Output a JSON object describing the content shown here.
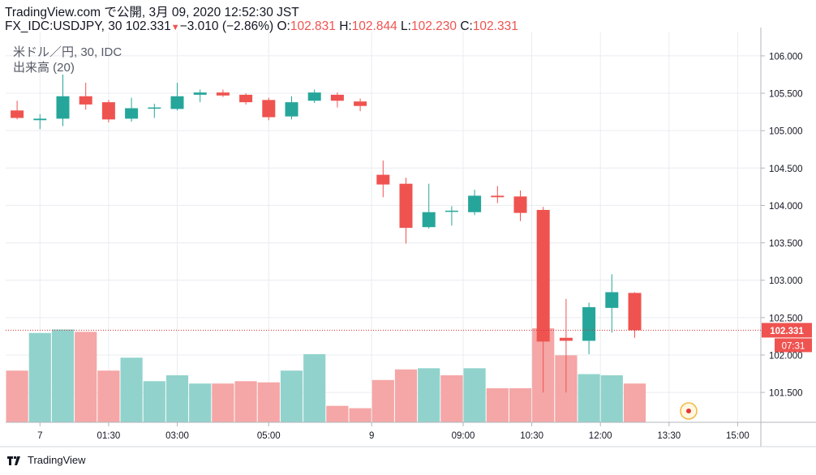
{
  "header": {
    "line1": "TradingView.com で公開, 3月 09, 2020 12:52:30 JST",
    "symbol": "FX_IDC:USDJPY, 30",
    "last": "102.331",
    "arrow": "▼",
    "change": "−3.010 (−2.86%)",
    "o_label": "O:",
    "o": "102.831",
    "h_label": "H:",
    "h": "102.844",
    "l_label": "L:",
    "l": "102.230",
    "c_label": "C:",
    "c": "102.331"
  },
  "legend": {
    "series": "米ドル／円, 30, IDC",
    "volume": "出来高 (20)"
  },
  "footer": {
    "brand": "TradingView"
  },
  "colors": {
    "up": "#26a69a",
    "down": "#ef5350",
    "vol_up": "#91d3cc",
    "vol_down": "#f5a6a6",
    "grid": "#e9ecf1",
    "price_line": "#d32f2f"
  },
  "chart_data": {
    "type": "candlestick",
    "x_tick_labels": [
      "7",
      "01:30",
      "03:00",
      "05:00",
      "9",
      "09:00",
      "10:30",
      "12:00",
      "13:30",
      "15:00"
    ],
    "y_tick_labels": [
      "106.000",
      "105.500",
      "105.000",
      "104.500",
      "104.000",
      "103.500",
      "103.000",
      "102.500",
      "102.000",
      "101.500"
    ],
    "y_ticks": [
      106.0,
      105.5,
      105.0,
      104.5,
      104.0,
      103.5,
      103.0,
      102.5,
      102.0,
      101.5
    ],
    "ylim": [
      101.1,
      106.27
    ],
    "last_price": "102.331",
    "last_price_value": 102.331,
    "countdown": "07:31",
    "candles": [
      {
        "o": 105.27,
        "h": 105.4,
        "l": 105.15,
        "c": 105.17
      },
      {
        "o": 105.14,
        "h": 105.22,
        "l": 105.02,
        "c": 105.16
      },
      {
        "o": 105.16,
        "h": 105.75,
        "l": 105.06,
        "c": 105.46
      },
      {
        "o": 105.46,
        "h": 105.64,
        "l": 105.28,
        "c": 105.35
      },
      {
        "o": 105.38,
        "h": 105.41,
        "l": 105.11,
        "c": 105.15
      },
      {
        "o": 105.16,
        "h": 105.44,
        "l": 105.12,
        "c": 105.3
      },
      {
        "o": 105.3,
        "h": 105.36,
        "l": 105.17,
        "c": 105.31
      },
      {
        "o": 105.29,
        "h": 105.64,
        "l": 105.27,
        "c": 105.46
      },
      {
        "o": 105.48,
        "h": 105.55,
        "l": 105.38,
        "c": 105.51
      },
      {
        "o": 105.51,
        "h": 105.55,
        "l": 105.45,
        "c": 105.47
      },
      {
        "o": 105.48,
        "h": 105.5,
        "l": 105.35,
        "c": 105.38
      },
      {
        "o": 105.41,
        "h": 105.44,
        "l": 105.14,
        "c": 105.18
      },
      {
        "o": 105.19,
        "h": 105.46,
        "l": 105.15,
        "c": 105.38
      },
      {
        "o": 105.4,
        "h": 105.55,
        "l": 105.37,
        "c": 105.51
      },
      {
        "o": 105.48,
        "h": 105.51,
        "l": 105.31,
        "c": 105.4
      },
      {
        "o": 105.39,
        "h": 105.43,
        "l": 105.26,
        "c": 105.33
      },
      {
        "o": 104.41,
        "h": 104.6,
        "l": 104.11,
        "c": 104.28
      },
      {
        "o": 104.29,
        "h": 104.37,
        "l": 103.49,
        "c": 103.7
      },
      {
        "o": 103.71,
        "h": 104.29,
        "l": 103.69,
        "c": 103.91
      },
      {
        "o": 103.92,
        "h": 103.99,
        "l": 103.73,
        "c": 103.93
      },
      {
        "o": 103.91,
        "h": 104.21,
        "l": 103.87,
        "c": 104.13
      },
      {
        "o": 104.13,
        "h": 104.26,
        "l": 104.03,
        "c": 104.11
      },
      {
        "o": 104.12,
        "h": 104.2,
        "l": 103.79,
        "c": 103.9
      },
      {
        "o": 103.94,
        "h": 103.98,
        "l": 101.5,
        "c": 102.18
      },
      {
        "o": 102.23,
        "h": 102.75,
        "l": 101.5,
        "c": 102.19
      },
      {
        "o": 102.19,
        "h": 102.7,
        "l": 102.01,
        "c": 102.64
      },
      {
        "o": 102.63,
        "h": 103.08,
        "l": 102.3,
        "c": 102.84
      },
      {
        "o": 102.83,
        "h": 102.84,
        "l": 102.23,
        "c": 102.331
      }
    ],
    "volume": [
      {
        "v": 0.44,
        "up": false
      },
      {
        "v": 0.76,
        "up": true
      },
      {
        "v": 0.79,
        "up": true
      },
      {
        "v": 0.77,
        "up": false
      },
      {
        "v": 0.44,
        "up": false
      },
      {
        "v": 0.55,
        "up": true
      },
      {
        "v": 0.35,
        "up": true
      },
      {
        "v": 0.4,
        "up": true
      },
      {
        "v": 0.33,
        "up": true
      },
      {
        "v": 0.33,
        "up": false
      },
      {
        "v": 0.35,
        "up": false
      },
      {
        "v": 0.34,
        "up": false
      },
      {
        "v": 0.44,
        "up": true
      },
      {
        "v": 0.58,
        "up": true
      },
      {
        "v": 0.14,
        "up": false
      },
      {
        "v": 0.12,
        "up": false
      },
      {
        "v": 0.36,
        "up": false
      },
      {
        "v": 0.45,
        "up": false
      },
      {
        "v": 0.46,
        "up": true
      },
      {
        "v": 0.4,
        "up": false
      },
      {
        "v": 0.46,
        "up": true
      },
      {
        "v": 0.29,
        "up": false
      },
      {
        "v": 0.29,
        "up": false
      },
      {
        "v": 0.8,
        "up": false
      },
      {
        "v": 0.57,
        "up": false
      },
      {
        "v": 0.41,
        "up": true
      },
      {
        "v": 0.4,
        "up": true
      },
      {
        "v": 0.33,
        "up": false
      }
    ]
  }
}
